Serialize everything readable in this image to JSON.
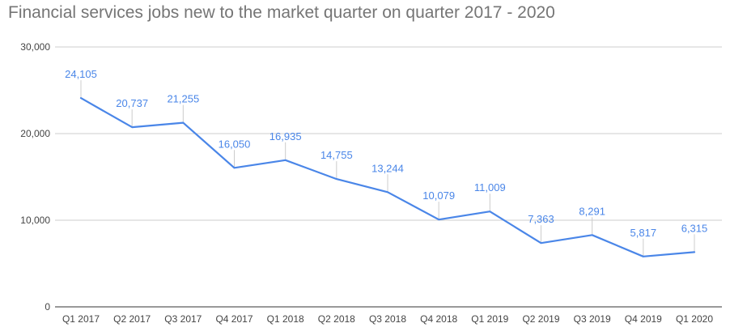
{
  "chart_data": {
    "type": "line",
    "title": "Financial services jobs new to the market quarter on quarter 2017 - 2020",
    "categories": [
      "Q1 2017",
      "Q2 2017",
      "Q3 2017",
      "Q4 2017",
      "Q1 2018",
      "Q2 2018",
      "Q3 2018",
      "Q4 2018",
      "Q1 2019",
      "Q2 2019",
      "Q3 2019",
      "Q4 2019",
      "Q1 2020"
    ],
    "values": [
      24105,
      20737,
      21255,
      16050,
      16935,
      14755,
      13244,
      10079,
      11009,
      7363,
      8291,
      5817,
      6315
    ],
    "data_labels": [
      "24,105",
      "20,737",
      "21,255",
      "16,050",
      "16,935",
      "14,755",
      "13,244",
      "10,079",
      "11,009",
      "7,363",
      "8,291",
      "5,817",
      "6,315"
    ],
    "yticks": [
      0,
      10000,
      20000,
      30000
    ],
    "ytick_labels": [
      "0",
      "10,000",
      "20,000",
      "30,000"
    ],
    "ylim": [
      0,
      30000
    ],
    "grid": true,
    "legend": "none",
    "colors": {
      "line": "#4a86e8",
      "label": "#4a86e8",
      "title": "#757575",
      "grid": "#cccccc",
      "axis": "#333333",
      "tick_text": "#444444"
    }
  }
}
